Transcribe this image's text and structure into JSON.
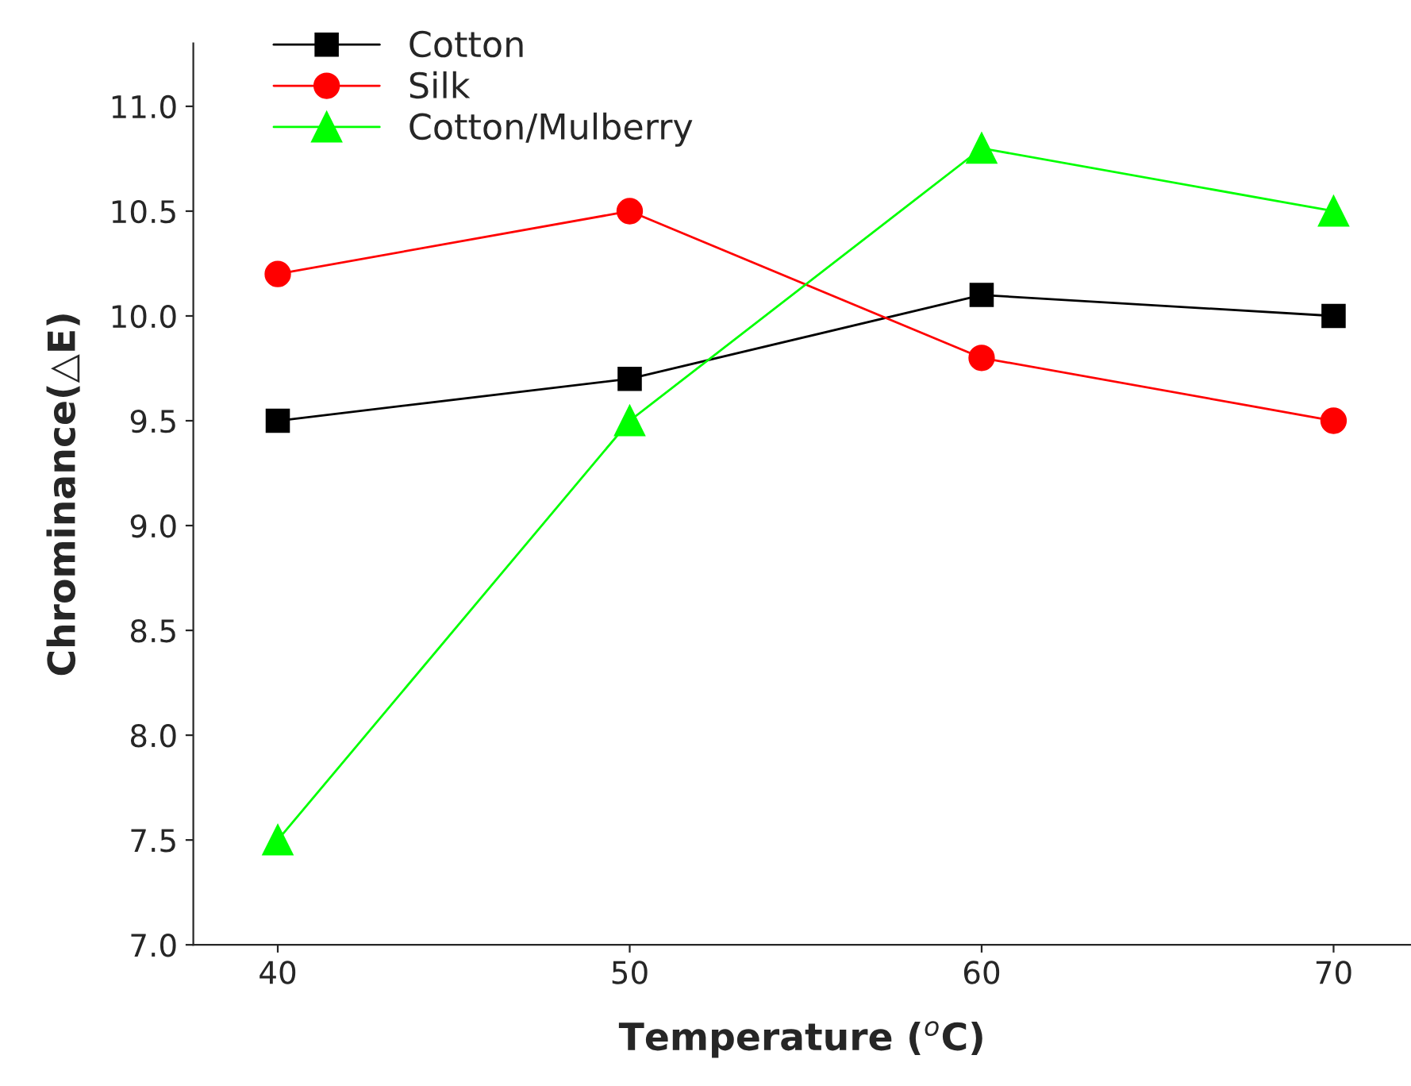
{
  "chart_data": {
    "type": "line",
    "xlabel": "Temperature ($^{o}$C)",
    "ylabel": "Chrominance(△E)",
    "x": [
      40,
      50,
      60,
      70
    ],
    "series": [
      {
        "name": "Cotton",
        "color": "#000000",
        "marker": "square",
        "values": [
          9.5,
          9.7,
          10.1,
          10.0
        ]
      },
      {
        "name": "Silk",
        "color": "#ff0000",
        "marker": "circle",
        "values": [
          10.2,
          10.5,
          9.8,
          9.5
        ]
      },
      {
        "name": "Cotton/Mulberry",
        "color": "#00ff00",
        "marker": "triangle",
        "values": [
          7.5,
          9.5,
          10.8,
          10.5
        ]
      }
    ],
    "xlim": [
      37.6,
      72.2
    ],
    "xticks": [
      40,
      50,
      60,
      70
    ],
    "ylim": [
      7.0,
      11.3
    ],
    "yticks": [
      {
        "value": 7.0,
        "label": "7.0"
      },
      {
        "value": 7.5,
        "label": "7.5"
      },
      {
        "value": 8.0,
        "label": "8.0"
      },
      {
        "value": 8.5,
        "label": "8.5"
      },
      {
        "value": 9.0,
        "label": "9.0"
      },
      {
        "value": 9.5,
        "label": "9.5"
      },
      {
        "value": 10.0,
        "label": "10.0"
      },
      {
        "value": 10.5,
        "label": "10.5"
      },
      {
        "value": 11.0,
        "label": "11.0"
      }
    ],
    "legend": "top left",
    "grid": false,
    "line_style": "solid"
  }
}
